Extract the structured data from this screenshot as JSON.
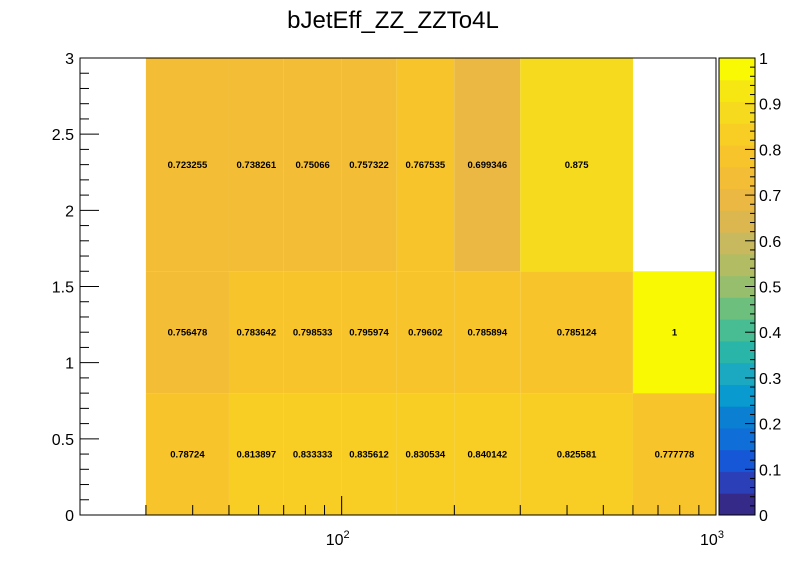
{
  "chart_data": {
    "type": "heatmap",
    "title": "bJetEff_ZZ_ZZTo4L",
    "x_scale": "log",
    "x_range": [
      20,
      1000
    ],
    "y_range": [
      0,
      3
    ],
    "x_bins": [
      30,
      50,
      70,
      100,
      140,
      200,
      300,
      600,
      1000
    ],
    "y_bins": [
      0,
      0.8,
      1.6,
      3
    ],
    "cells": [
      [
        0.78724,
        0.813897,
        0.833333,
        0.835612,
        0.830534,
        0.840142,
        0.825581,
        0.777778
      ],
      [
        0.756478,
        0.783642,
        0.798533,
        0.795974,
        0.79602,
        0.785894,
        0.785124,
        1
      ],
      [
        0.723255,
        0.738261,
        0.75066,
        0.757322,
        0.767535,
        0.699346,
        0.875,
        null
      ]
    ],
    "cell_labels": [
      [
        "0.78724",
        "0.813897",
        "0.833333",
        "0.835612",
        "0.830534",
        "0.840142",
        "0.825581",
        "0.777778"
      ],
      [
        "0.756478",
        "0.783642",
        "0.798533",
        "0.795974",
        "0.79602",
        "0.785894",
        "0.785124",
        "1"
      ],
      [
        "0.723255",
        "0.738261",
        "0.75066",
        "0.757322",
        "0.767535",
        "0.699346",
        "0.875",
        ""
      ]
    ],
    "y_tick_labels": [
      "0",
      "0.5",
      "1",
      "1.5",
      "2",
      "2.5",
      "3"
    ],
    "x_tick_labels": [
      {
        "base": "10",
        "exp": "2"
      },
      {
        "base": "10",
        "exp": "3"
      }
    ],
    "colorbar": {
      "range": [
        0,
        1
      ],
      "tick_labels": [
        "0",
        "0.1",
        "0.2",
        "0.3",
        "0.4",
        "0.5",
        "0.6",
        "0.7",
        "0.8",
        "0.9",
        "1"
      ],
      "palette": [
        "#352a87",
        "#2b3fb8",
        "#1557d6",
        "#0f6ed7",
        "#0b80d2",
        "#099ad0",
        "#1ba9c2",
        "#2ab5a9",
        "#48bc92",
        "#6dbf7d",
        "#96be6c",
        "#b2bc63",
        "#c9b95e",
        "#dcb74f",
        "#eab843",
        "#f3bd35",
        "#f7c42c",
        "#f8cd24",
        "#f6da1d",
        "#f6e713",
        "#f9f904"
      ]
    },
    "grid": false,
    "legend": "colorbar-right"
  }
}
